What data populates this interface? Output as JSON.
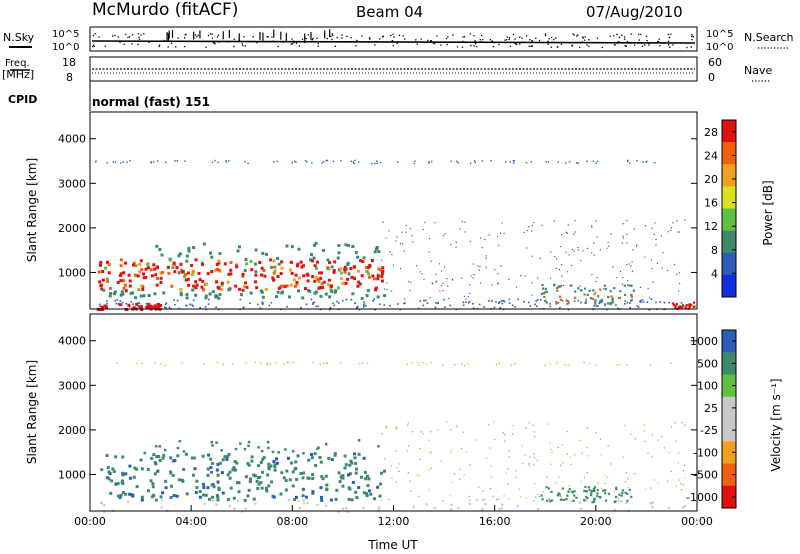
{
  "header": {
    "station": "McMurdo (fitACF)",
    "beam": "Beam 04",
    "date": "07/Aug/2010"
  },
  "colors": {
    "power_scale": [
      "#1030e0",
      "#2a5cb8",
      "#3c8a6a",
      "#5fbf3e",
      "#d8e020",
      "#f0a020",
      "#f06010",
      "#e01010"
    ],
    "velocity_scale": [
      "#e01010",
      "#f06010",
      "#f0a020",
      "#c8c8c8",
      "#c8c8c8",
      "#5fbf3e",
      "#3c8a6a",
      "#2a5cb8"
    ]
  },
  "chart_data": [
    {
      "type": "line",
      "panel": "noise",
      "left_label": "N.Sky",
      "right_label": "N.Search",
      "left_ticks": [
        "10^5",
        "10^0"
      ],
      "right_ticks": [
        "10^5",
        "10^0"
      ],
      "xlim": [
        0,
        24
      ]
    },
    {
      "type": "line",
      "panel": "frequency",
      "left_label": "Freq.",
      "left_unit": "[MHz]",
      "right_label": "Nave",
      "left_ticks": [
        18,
        8
      ],
      "right_ticks": [
        60,
        0
      ],
      "xlim": [
        0,
        24
      ]
    },
    {
      "type": "table",
      "panel": "cpid",
      "label": "CPID",
      "text": "normal (fast) 151"
    },
    {
      "type": "heatmap",
      "panel": "power",
      "ylabel": "Slant Range [km]",
      "ylim": [
        180,
        4600
      ],
      "yticks": [
        1000,
        2000,
        3000,
        4000
      ],
      "xlim": [
        0,
        24
      ],
      "xticks": [
        "00:00",
        "04:00",
        "08:00",
        "12:00",
        "16:00",
        "20:00",
        "00:00"
      ],
      "colorbar_label": "Power [dB]",
      "colorbar_ticks": [
        4,
        8,
        12,
        16,
        20,
        24,
        28
      ],
      "colorbar_range": [
        0,
        30
      ]
    },
    {
      "type": "heatmap",
      "panel": "velocity",
      "ylabel": "Slant Range [km]",
      "xlabel": "Time UT",
      "ylim": [
        180,
        4600
      ],
      "yticks": [
        1000,
        2000,
        3000,
        4000
      ],
      "xlim": [
        0,
        24
      ],
      "xticks": [
        "00:00",
        "04:00",
        "08:00",
        "12:00",
        "16:00",
        "20:00",
        "00:00"
      ],
      "colorbar_label": "Velocity [m s⁻¹]",
      "colorbar_ticks": [
        "1000",
        "500",
        "100",
        "25",
        "-25",
        "-100",
        "-500",
        "-1000"
      ]
    }
  ]
}
